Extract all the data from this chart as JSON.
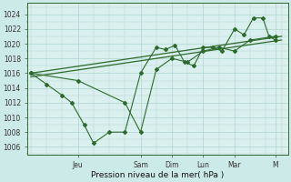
{
  "bg_color": "#cceae7",
  "plot_bg_color": "#daf0ee",
  "grid_color": "#b0d4d0",
  "line_color": "#2d6a2d",
  "marker_color": "#2d6a2d",
  "xlabel": "Pression niveau de la mer( hPa )",
  "ylim": [
    1005.0,
    1025.5
  ],
  "yticks": [
    1006,
    1008,
    1010,
    1012,
    1014,
    1016,
    1018,
    1020,
    1022,
    1024
  ],
  "day_labels": [
    "Jeu",
    "Sam",
    "Dim",
    "Lun",
    "Mar",
    "M"
  ],
  "day_positions": [
    1.5,
    3.5,
    4.5,
    5.5,
    6.5,
    7.8
  ],
  "xlim": [
    -0.1,
    8.2
  ],
  "series_zigzag_x": [
    0.0,
    0.5,
    1.0,
    1.3,
    1.7,
    2.0,
    2.5,
    3.0,
    3.5,
    4.0,
    4.3,
    4.6,
    4.9,
    5.2,
    5.5,
    5.8,
    6.1,
    6.5,
    6.8,
    7.1,
    7.4,
    7.6,
    7.8
  ],
  "series_zigzag_y": [
    1016.0,
    1014.5,
    1013.0,
    1012.0,
    1009.0,
    1006.5,
    1008.0,
    1008.0,
    1016.0,
    1019.5,
    1019.2,
    1019.8,
    1017.5,
    1017.0,
    1019.5,
    1019.5,
    1019.0,
    1022.0,
    1021.2,
    1023.5,
    1023.5,
    1021.0,
    1020.5
  ],
  "series_smooth_x": [
    0.0,
    1.5,
    3.0,
    3.5,
    4.0,
    4.5,
    5.0,
    5.5,
    6.0,
    6.5,
    7.0,
    7.8
  ],
  "series_smooth_y": [
    1016.0,
    1015.0,
    1012.0,
    1008.0,
    1016.5,
    1018.0,
    1017.5,
    1019.0,
    1019.5,
    1019.0,
    1020.5,
    1021.0
  ],
  "series_trend_x": [
    0.0,
    8.0
  ],
  "series_trend_y": [
    1015.5,
    1020.5
  ],
  "series_trend2_x": [
    0.0,
    8.0
  ],
  "series_trend2_y": [
    1016.0,
    1021.0
  ]
}
